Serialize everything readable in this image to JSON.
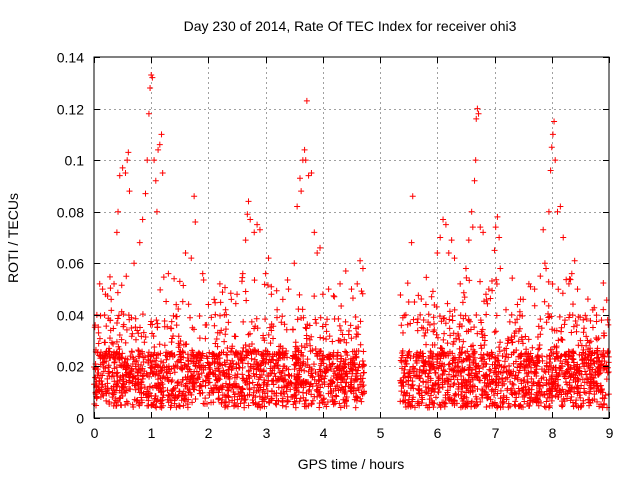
{
  "chart_data": {
    "type": "scatter",
    "title": "Day 230 of 2014, Rate Of TEC Index for receiver ohi3",
    "xlabel": "GPS time / hours",
    "ylabel": "ROTI / TECUs",
    "xlim": [
      0,
      9
    ],
    "ylim": [
      0,
      0.14
    ],
    "xticks": [
      0,
      1,
      2,
      3,
      4,
      5,
      6,
      7,
      8,
      9
    ],
    "xtick_labels": [
      "0",
      "1",
      "2",
      "3",
      "4",
      "5",
      "6",
      "7",
      "8",
      "9"
    ],
    "yticks": [
      0,
      0.02,
      0.04,
      0.06,
      0.08,
      0.1,
      0.12,
      0.14
    ],
    "ytick_labels": [
      "0",
      "0.02",
      "0.04",
      "0.06",
      "0.08",
      "0.1",
      "0.12",
      "0.14"
    ],
    "grid": true,
    "marker": "+",
    "color": "#ff0000",
    "data_gap_hours": [
      4.72,
      5.35
    ],
    "series": [
      {
        "name": "ROTI",
        "points": [
          [
            0.02,
            0.036
          ],
          [
            0.05,
            0.04
          ],
          [
            0.08,
            0.033
          ],
          [
            0.1,
            0.052
          ],
          [
            0.15,
            0.05
          ],
          [
            0.2,
            0.048
          ],
          [
            0.3,
            0.046
          ],
          [
            0.35,
            0.052
          ],
          [
            0.4,
            0.072
          ],
          [
            0.42,
            0.08
          ],
          [
            0.45,
            0.094
          ],
          [
            0.5,
            0.097
          ],
          [
            0.55,
            0.095
          ],
          [
            0.58,
            0.1
          ],
          [
            0.6,
            0.103
          ],
          [
            0.62,
            0.088
          ],
          [
            0.7,
            0.06
          ],
          [
            0.8,
            0.068
          ],
          [
            0.85,
            0.077
          ],
          [
            0.9,
            0.087
          ],
          [
            0.93,
            0.1
          ],
          [
            0.96,
            0.118
          ],
          [
            0.98,
            0.128
          ],
          [
            1.0,
            0.133
          ],
          [
            1.02,
            0.132
          ],
          [
            1.05,
            0.1
          ],
          [
            1.08,
            0.092
          ],
          [
            1.1,
            0.08
          ],
          [
            1.12,
            0.104
          ],
          [
            1.15,
            0.106
          ],
          [
            1.18,
            0.11
          ],
          [
            1.2,
            0.095
          ],
          [
            1.3,
            0.056
          ],
          [
            1.4,
            0.054
          ],
          [
            1.5,
            0.053
          ],
          [
            1.6,
            0.064
          ],
          [
            1.7,
            0.062
          ],
          [
            1.75,
            0.086
          ],
          [
            1.77,
            0.076
          ],
          [
            1.9,
            0.056
          ],
          [
            2.0,
            0.044
          ],
          [
            2.1,
            0.046
          ],
          [
            2.2,
            0.052
          ],
          [
            2.3,
            0.042
          ],
          [
            2.4,
            0.046
          ],
          [
            2.5,
            0.048
          ],
          [
            2.6,
            0.056
          ],
          [
            2.65,
            0.069
          ],
          [
            2.68,
            0.079
          ],
          [
            2.7,
            0.084
          ],
          [
            2.73,
            0.077
          ],
          [
            2.8,
            0.072
          ],
          [
            2.85,
            0.075
          ],
          [
            2.9,
            0.073
          ],
          [
            3.0,
            0.056
          ],
          [
            3.05,
            0.062
          ],
          [
            3.1,
            0.048
          ],
          [
            3.2,
            0.042
          ],
          [
            3.3,
            0.046
          ],
          [
            3.4,
            0.05
          ],
          [
            3.5,
            0.06
          ],
          [
            3.55,
            0.082
          ],
          [
            3.6,
            0.093
          ],
          [
            3.62,
            0.088
          ],
          [
            3.65,
            0.1
          ],
          [
            3.68,
            0.104
          ],
          [
            3.7,
            0.1
          ],
          [
            3.72,
            0.123
          ],
          [
            3.75,
            0.094
          ],
          [
            3.8,
            0.095
          ],
          [
            3.85,
            0.072
          ],
          [
            3.9,
            0.064
          ],
          [
            3.95,
            0.066
          ],
          [
            4.0,
            0.048
          ],
          [
            4.1,
            0.05
          ],
          [
            4.2,
            0.047
          ],
          [
            4.3,
            0.052
          ],
          [
            4.4,
            0.057
          ],
          [
            4.5,
            0.05
          ],
          [
            4.6,
            0.052
          ],
          [
            4.65,
            0.061
          ],
          [
            4.7,
            0.058
          ],
          [
            5.4,
            0.033
          ],
          [
            5.45,
            0.04
          ],
          [
            5.5,
            0.045
          ],
          [
            5.55,
            0.068
          ],
          [
            5.57,
            0.086
          ],
          [
            5.6,
            0.045
          ],
          [
            5.7,
            0.04
          ],
          [
            5.8,
            0.044
          ],
          [
            5.9,
            0.047
          ],
          [
            6.0,
            0.064
          ],
          [
            6.05,
            0.07
          ],
          [
            6.1,
            0.077
          ],
          [
            6.15,
            0.075
          ],
          [
            6.2,
            0.064
          ],
          [
            6.25,
            0.069
          ],
          [
            6.3,
            0.062
          ],
          [
            6.4,
            0.052
          ],
          [
            6.5,
            0.058
          ],
          [
            6.55,
            0.069
          ],
          [
            6.6,
            0.08
          ],
          [
            6.62,
            0.074
          ],
          [
            6.65,
            0.092
          ],
          [
            6.67,
            0.1
          ],
          [
            6.68,
            0.116
          ],
          [
            6.7,
            0.12
          ],
          [
            6.72,
            0.118
          ],
          [
            6.75,
            0.074
          ],
          [
            6.8,
            0.072
          ],
          [
            6.85,
            0.048
          ],
          [
            6.9,
            0.05
          ],
          [
            7.0,
            0.065
          ],
          [
            7.02,
            0.074
          ],
          [
            7.05,
            0.078
          ],
          [
            7.08,
            0.07
          ],
          [
            7.1,
            0.058
          ],
          [
            7.2,
            0.042
          ],
          [
            7.3,
            0.04
          ],
          [
            7.4,
            0.044
          ],
          [
            7.5,
            0.046
          ],
          [
            7.6,
            0.052
          ],
          [
            7.7,
            0.05
          ],
          [
            7.8,
            0.055
          ],
          [
            7.85,
            0.073
          ],
          [
            7.88,
            0.06
          ],
          [
            7.9,
            0.058
          ],
          [
            7.95,
            0.08
          ],
          [
            7.98,
            0.096
          ],
          [
            8.0,
            0.105
          ],
          [
            8.02,
            0.11
          ],
          [
            8.04,
            0.115
          ],
          [
            8.06,
            0.1
          ],
          [
            8.1,
            0.08
          ],
          [
            8.15,
            0.082
          ],
          [
            8.2,
            0.07
          ],
          [
            8.3,
            0.052
          ],
          [
            8.35,
            0.056
          ],
          [
            8.4,
            0.061
          ],
          [
            8.45,
            0.05
          ],
          [
            8.5,
            0.03
          ],
          [
            8.6,
            0.028
          ],
          [
            8.7,
            0.025
          ],
          [
            8.8,
            0.027
          ],
          [
            8.9,
            0.024
          ],
          [
            8.95,
            0.02
          ]
        ]
      }
    ]
  }
}
